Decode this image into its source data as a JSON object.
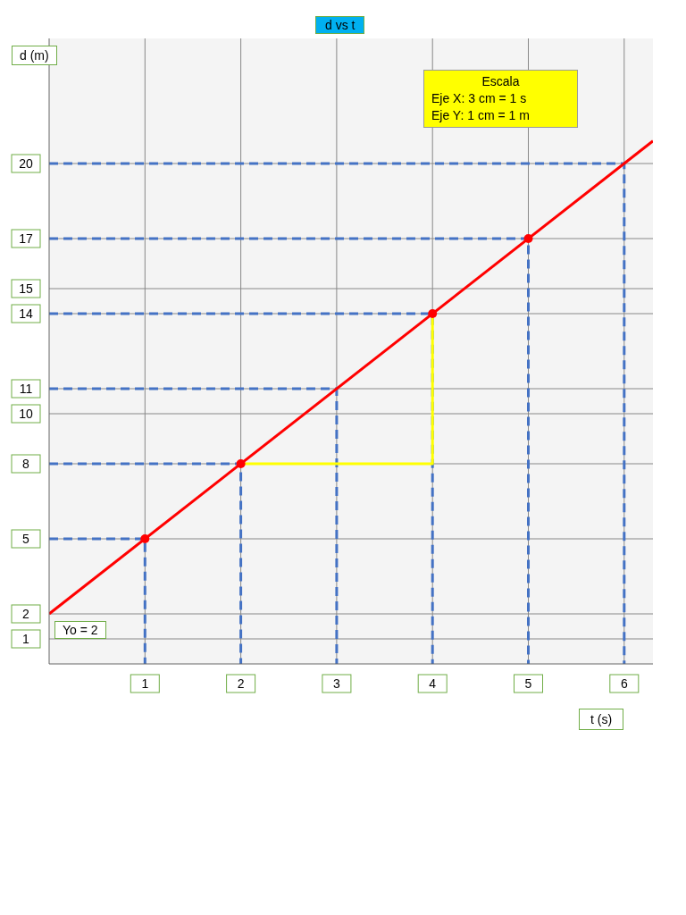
{
  "chart_data": {
    "type": "line",
    "title": "d vs t",
    "xlabel": "t (s)",
    "ylabel": "d (m)",
    "xlim": [
      0,
      6.3
    ],
    "xticks": [
      1,
      2,
      3,
      4,
      5,
      6
    ],
    "ylim": [
      0,
      25
    ],
    "yticks": [
      1,
      2,
      5,
      8,
      10,
      11,
      14,
      15,
      17,
      20
    ],
    "grid": true,
    "series": [
      {
        "type": "line",
        "color": "#4472c4",
        "line_style": "dashed",
        "marker": "none",
        "x": [
          0,
          1,
          1
        ],
        "values": [
          5,
          5,
          0
        ]
      },
      {
        "type": "line",
        "color": "#4472c4",
        "line_style": "dashed",
        "marker": "none",
        "x": [
          0,
          2,
          2
        ],
        "values": [
          8,
          8,
          0
        ]
      },
      {
        "type": "line",
        "color": "#4472c4",
        "line_style": "dashed",
        "marker": "none",
        "x": [
          0,
          3,
          3
        ],
        "values": [
          11,
          11,
          0
        ]
      },
      {
        "type": "line",
        "color": "#4472c4",
        "line_style": "dashed",
        "marker": "none",
        "x": [
          0,
          4,
          4
        ],
        "values": [
          14,
          14,
          0
        ]
      },
      {
        "type": "line",
        "color": "#4472c4",
        "line_style": "dashed",
        "marker": "none",
        "x": [
          0,
          5,
          5
        ],
        "values": [
          17,
          17,
          0
        ]
      },
      {
        "type": "line",
        "color": "#4472c4",
        "line_style": "dashed",
        "marker": "none",
        "x": [
          0,
          6,
          6
        ],
        "values": [
          20,
          20,
          0
        ]
      },
      {
        "type": "line",
        "color": "#ffff00",
        "line_style": "solid",
        "marker": "none",
        "x": [
          2,
          4,
          4
        ],
        "values": [
          8,
          8,
          14
        ]
      },
      {
        "type": "line",
        "color": "#ff0000",
        "line_style": "solid",
        "marker": "none",
        "x": [
          0,
          6.3
        ],
        "values": [
          2,
          20.9
        ]
      },
      {
        "type": "scatter",
        "color": "#ff0000",
        "marker": "circle",
        "x": [
          1,
          2,
          4,
          5
        ],
        "values": [
          5,
          8,
          14,
          17
        ]
      }
    ],
    "annotations": [
      "Escala\nEje X: 3 cm = 1 s\nEje Y: 1 cm = 1 m",
      {
        "text": "Yo = 2",
        "x": 0,
        "y": 2
      }
    ]
  }
}
